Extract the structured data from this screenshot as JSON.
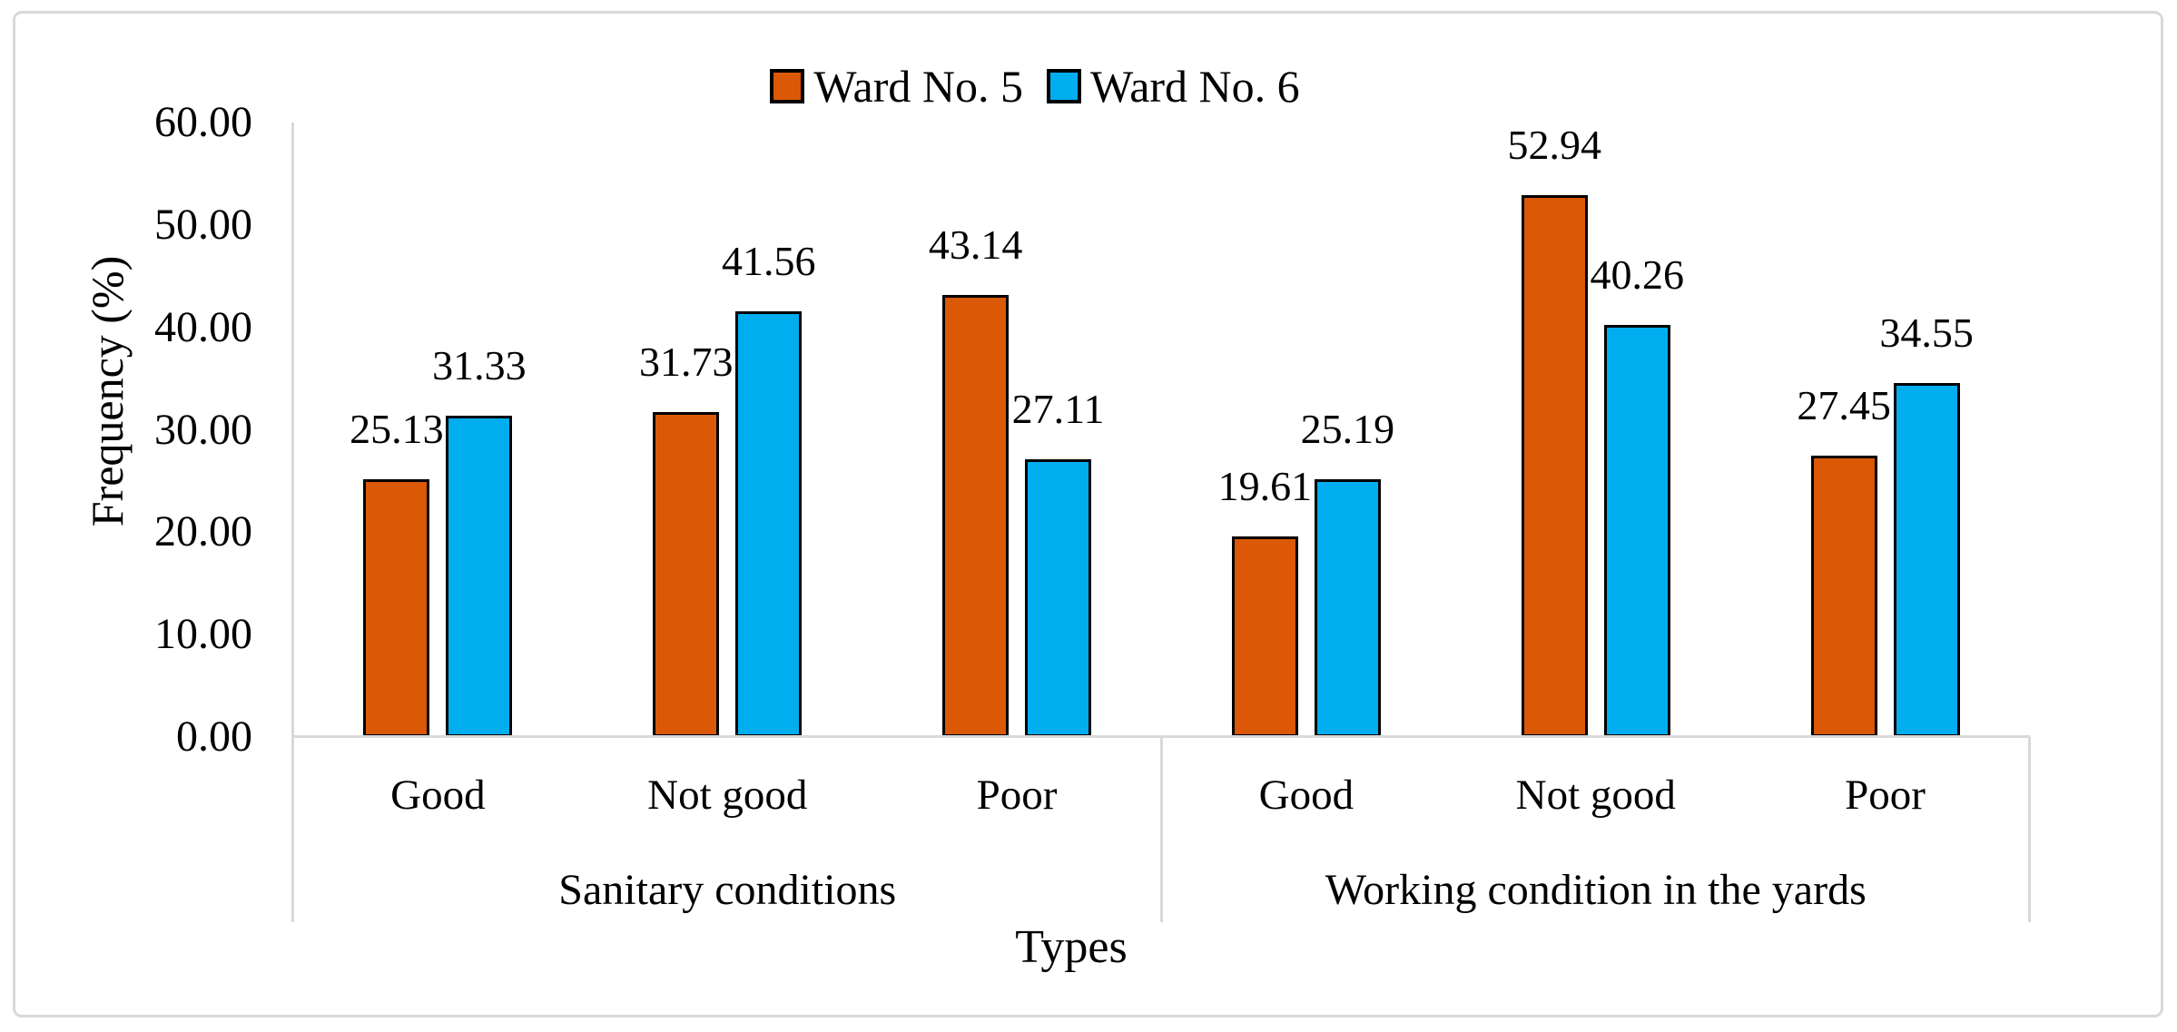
{
  "figure": {
    "background_color": "#FFFFFF",
    "frame_color": "#D9D9D9"
  },
  "chart_data": {
    "type": "bar",
    "title": "",
    "xlabel": "Types",
    "ylabel": "Frequency (%)",
    "ylim": [
      0,
      60
    ],
    "ytick_step": 10,
    "yticks": [
      "0.00",
      "10.00",
      "20.00",
      "30.00",
      "40.00",
      "50.00",
      "60.00"
    ],
    "grid": false,
    "legend_position": "top-center",
    "axis_color": "#D9D9D9",
    "bar_border_color": "#000000",
    "value_labels_shown": true,
    "value_label_decimals": 2,
    "groups": [
      "Sanitary conditions",
      "Working condition in the yards"
    ],
    "categories": [
      "Good",
      "Not good",
      "Poor",
      "Good",
      "Not good",
      "Poor"
    ],
    "category_group_index": [
      0,
      0,
      0,
      1,
      1,
      1
    ],
    "series": [
      {
        "name": "Ward No. 5",
        "color": "#DA5806",
        "values": [
          25.13,
          31.73,
          43.14,
          19.61,
          52.94,
          27.45
        ]
      },
      {
        "name": "Ward No. 6",
        "color": "#00AEEF",
        "values": [
          31.33,
          41.56,
          27.11,
          25.19,
          40.26,
          34.55
        ]
      }
    ]
  }
}
